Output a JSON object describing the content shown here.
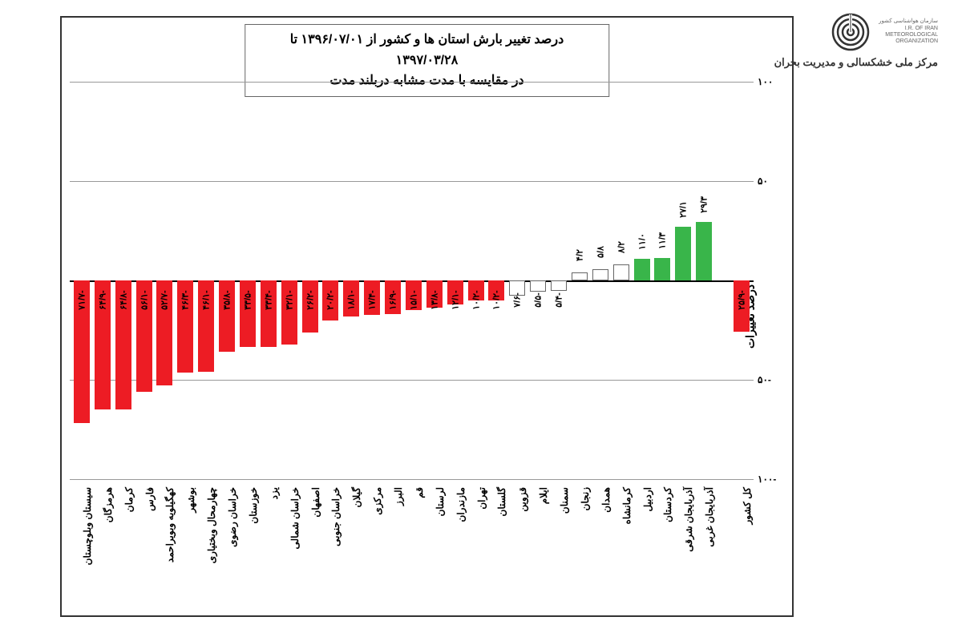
{
  "header": {
    "org_top_line1": "سازمان هواشناسی کشور",
    "org_top_line2": "I.R. OF IRAN",
    "org_top_line3": "METEOROLOGICAL",
    "org_top_line4": "ORGANIZATION",
    "subtitle": "مرکز ملی خشکسالی و مدیریت بحران"
  },
  "chart": {
    "title_line1": "درصد تغییر بارش استان ها و کشور از   ۱۳۹۶/۰۷/۰۱ تا ۱۳۹۷/۰۳/۲۸",
    "title_line2": "در مقایسه با مدت مشابه دربلند مدت",
    "y_axis_label": "درصد تغییرات",
    "ylim": [
      -100,
      100
    ],
    "yticks": [
      -100,
      -50,
      50,
      100
    ],
    "ytick_labels": [
      "-۱۰۰",
      "-۵۰",
      "۵۰",
      "۱۰۰"
    ],
    "bar_colors": {
      "negative": "#ed1c24",
      "positive": "#39b54a",
      "small": "#ffffff"
    },
    "small_threshold": 9,
    "data": [
      {
        "name": "سیستان وبلوچستان",
        "value": -71.7,
        "label": "-۷۱/۷"
      },
      {
        "name": "هرمزگان",
        "value": -64.9,
        "label": "-۶۴/۹"
      },
      {
        "name": "کرمان",
        "value": -64.8,
        "label": "-۶۴/۸"
      },
      {
        "name": "فارس",
        "value": -56.1,
        "label": "-۵۶/۱"
      },
      {
        "name": "کهگیلویه وبویراحمد",
        "value": -52.7,
        "label": "-۵۲/۷"
      },
      {
        "name": "بوشهر",
        "value": -46.3,
        "label": "-۴۶/۳"
      },
      {
        "name": "چهارمحال وبختیاری",
        "value": -46.1,
        "label": "-۴۶/۱"
      },
      {
        "name": "خراسان رضوی",
        "value": -35.8,
        "label": "-۳۵/۸"
      },
      {
        "name": "خوزستان",
        "value": -33.5,
        "label": "-۳۳/۵"
      },
      {
        "name": "یزد",
        "value": -33.4,
        "label": "-۳۳/۴"
      },
      {
        "name": "خراسان شمالی",
        "value": -32.1,
        "label": "-۳۲/۱"
      },
      {
        "name": "اصفهان",
        "value": -26.2,
        "label": "-۲۶/۲"
      },
      {
        "name": "خراسان جنوبی",
        "value": -20.2,
        "label": "-۲۰/۲"
      },
      {
        "name": "گیلان",
        "value": -18.1,
        "label": "-۱۸/۱"
      },
      {
        "name": "مرکزی",
        "value": -17.4,
        "label": "-۱۷/۴"
      },
      {
        "name": "البرز",
        "value": -16.9,
        "label": "-۱۶/۹"
      },
      {
        "name": "قم",
        "value": -15.1,
        "label": "-۱۵/۱"
      },
      {
        "name": "لرستان",
        "value": -13.8,
        "label": "-۱۳/۸"
      },
      {
        "name": "مازندران",
        "value": -12.1,
        "label": "-۱۲/۱"
      },
      {
        "name": "تهران",
        "value": -10.2,
        "label": "-۱۰/۲"
      },
      {
        "name": "گلستان",
        "value": -10.2,
        "label": "-۱۰/۲"
      },
      {
        "name": "قزوین",
        "value": -7.6,
        "label": "-۷/۶"
      },
      {
        "name": "ایلام",
        "value": -5.5,
        "label": "-۵/۵"
      },
      {
        "name": "سمنان",
        "value": -5.4,
        "label": "-۵/۴"
      },
      {
        "name": "زنجان",
        "value": 4.2,
        "label": "۴/۲"
      },
      {
        "name": "همدان",
        "value": 5.8,
        "label": "۵/۸"
      },
      {
        "name": "کرمانشاه",
        "value": 8.2,
        "label": "۸/۲"
      },
      {
        "name": "اردبیل",
        "value": 11.0,
        "label": "۱۱/۰"
      },
      {
        "name": "کردستان",
        "value": 11.3,
        "label": "۱۱/۳"
      },
      {
        "name": "آذربایجان شرقی",
        "value": 27.1,
        "label": "۲۷/۱"
      },
      {
        "name": "آذربایجان غربی",
        "value": 29.3,
        "label": "۲۹/۳"
      }
    ],
    "country": {
      "name": "کل کشور",
      "value": -25.9,
      "label": "-۲۵/۹"
    }
  }
}
